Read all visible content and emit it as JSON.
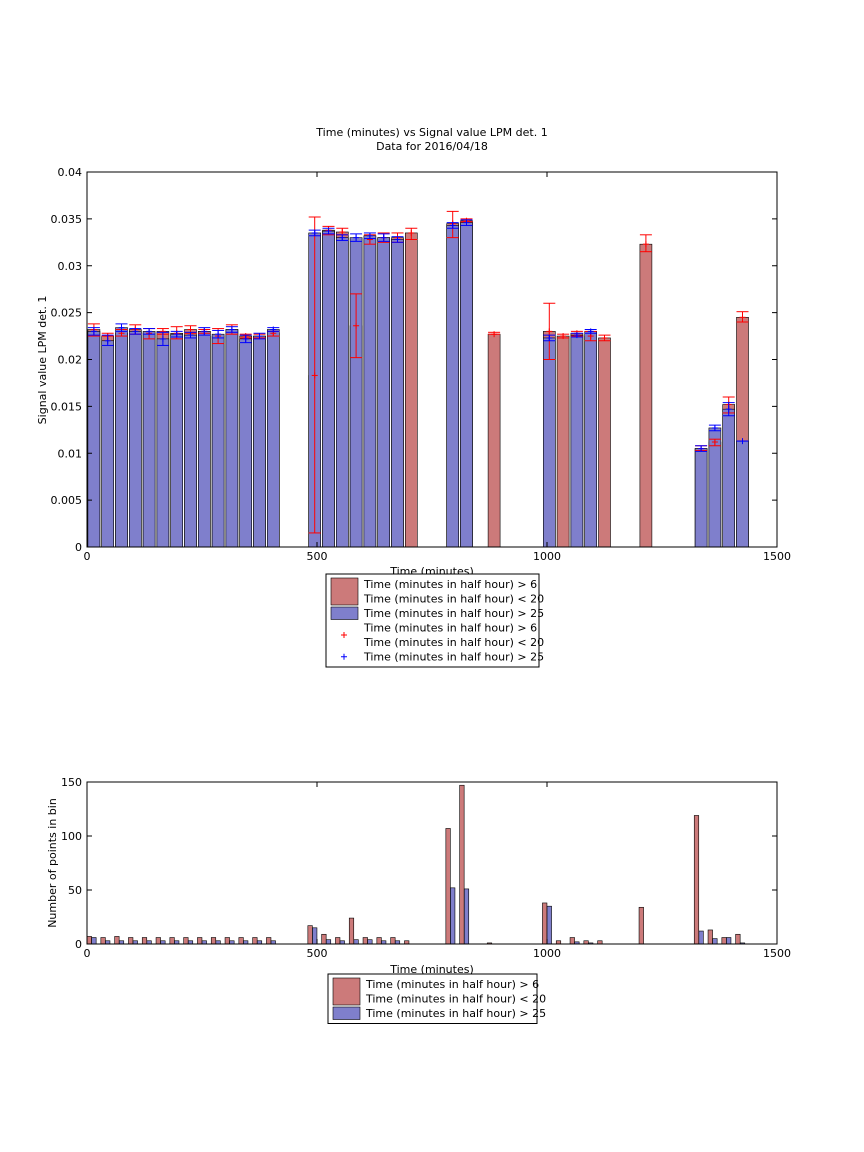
{
  "colors": {
    "red_fill": "#cc7a7a",
    "blue_fill": "#7f7fcc",
    "red_err": "#ff0000",
    "blue_err": "#0000ff",
    "axis": "#000000"
  },
  "chart_data": [
    {
      "type": "bar",
      "title": "Time (minutes) vs Signal value LPM det. 1",
      "subtitle": "Data for 2016/04/18",
      "xlabel": "Time (minutes)",
      "ylabel": "Signal value LPM det. 1",
      "xlim": [
        0,
        1500
      ],
      "ylim": [
        0,
        0.04
      ],
      "xticks": [
        0,
        500,
        1000,
        1500
      ],
      "yticks": [
        0,
        0.005,
        0.01,
        0.015,
        0.02,
        0.025,
        0.03,
        0.035,
        0.04
      ],
      "ytick_labels": [
        "0",
        "0.005",
        "0.01",
        "0.015",
        "0.02",
        "0.025",
        "0.03",
        "0.035",
        "0.04"
      ],
      "legend_position": "below",
      "legend": [
        {
          "kind": "bar",
          "color": "red",
          "lines": [
            "Time (minutes in half hour) > 6",
            "Time (minutes in half hour) < 20"
          ]
        },
        {
          "kind": "bar",
          "color": "blue",
          "lines": [
            "Time (minutes in half hour) > 25"
          ]
        },
        {
          "kind": "marker",
          "color": "red",
          "lines": [
            "Time (minutes in half hour) > 6",
            "Time (minutes in half hour) < 20"
          ]
        },
        {
          "kind": "marker",
          "color": "blue",
          "lines": [
            "Time (minutes in half hour) > 25"
          ]
        }
      ],
      "series": [
        {
          "color": "red",
          "x": [
            15,
            45,
            75,
            105,
            135,
            165,
            195,
            225,
            255,
            285,
            315,
            345,
            375,
            405,
            495,
            525,
            555,
            585,
            615,
            645,
            675,
            705,
            795,
            825,
            885,
            1005,
            1035,
            1065,
            1095,
            1125,
            1215,
            1335,
            1365,
            1395,
            1425
          ],
          "values": [
            0.0232,
            0.0225,
            0.0228,
            0.0232,
            0.0228,
            0.023,
            0.0228,
            0.0232,
            0.023,
            0.0225,
            0.0232,
            0.0225,
            0.0225,
            0.0228,
            0.0183,
            0.0338,
            0.0336,
            0.0236,
            0.0328,
            0.033,
            0.033,
            0.0335,
            0.0345,
            0.0348,
            0.0227,
            0.023,
            0.0225,
            0.0228,
            0.0225,
            0.0223,
            0.0323,
            0.0105,
            0.0112,
            0.0152,
            0.0245
          ],
          "err_low": [
            0.0225,
            0.0225,
            0.0225,
            0.0227,
            0.0222,
            0.0227,
            0.0222,
            0.0228,
            0.0228,
            0.0217,
            0.0227,
            0.0223,
            0.0223,
            0.0225,
            0.0015,
            0.0333,
            0.0333,
            0.0202,
            0.0323,
            0.0325,
            0.0325,
            0.0328,
            0.033,
            0.0347,
            0.0227,
            0.02,
            0.0223,
            0.0225,
            0.022,
            0.022,
            0.0315,
            0.0103,
            0.0108,
            0.0143,
            0.024
          ],
          "err_high": [
            0.0238,
            0.0228,
            0.0232,
            0.0237,
            0.0233,
            0.0233,
            0.0235,
            0.0236,
            0.0232,
            0.0233,
            0.0237,
            0.0227,
            0.0227,
            0.023,
            0.0352,
            0.0342,
            0.034,
            0.027,
            0.0333,
            0.0335,
            0.0335,
            0.034,
            0.0358,
            0.035,
            0.0229,
            0.026,
            0.0227,
            0.023,
            0.023,
            0.0226,
            0.0333,
            0.0108,
            0.0115,
            0.016,
            0.0251
          ]
        },
        {
          "color": "blue",
          "x": [
            15,
            45,
            75,
            105,
            135,
            165,
            195,
            225,
            255,
            285,
            315,
            345,
            375,
            405,
            495,
            525,
            555,
            585,
            615,
            645,
            675,
            795,
            825,
            1005,
            1065,
            1095,
            1335,
            1365,
            1395,
            1425
          ],
          "values": [
            0.023,
            0.022,
            0.0234,
            0.023,
            0.023,
            0.0222,
            0.0227,
            0.0226,
            0.023,
            0.0227,
            0.0232,
            0.0222,
            0.0225,
            0.0232,
            0.0335,
            0.0337,
            0.033,
            0.033,
            0.0332,
            0.033,
            0.0328,
            0.0343,
            0.0346,
            0.0223,
            0.0226,
            0.023,
            0.0105,
            0.0127,
            0.0147,
            0.0113
          ],
          "err_low": [
            0.0226,
            0.0215,
            0.023,
            0.0227,
            0.0227,
            0.0215,
            0.0224,
            0.0223,
            0.0226,
            0.0223,
            0.0229,
            0.0218,
            0.0222,
            0.023,
            0.0332,
            0.0334,
            0.0327,
            0.0326,
            0.0329,
            0.0326,
            0.0325,
            0.034,
            0.0343,
            0.022,
            0.0224,
            0.0228,
            0.0102,
            0.0124,
            0.014,
            0.0113
          ],
          "err_high": [
            0.0234,
            0.0226,
            0.0238,
            0.0233,
            0.0233,
            0.0229,
            0.023,
            0.0229,
            0.0234,
            0.0231,
            0.0235,
            0.0226,
            0.0228,
            0.0234,
            0.0338,
            0.034,
            0.0333,
            0.0334,
            0.0335,
            0.0334,
            0.0331,
            0.0346,
            0.0349,
            0.0226,
            0.0228,
            0.0232,
            0.0108,
            0.013,
            0.0154,
            0.0113
          ]
        }
      ]
    },
    {
      "type": "bar",
      "xlabel": "Time (minutes)",
      "ylabel": "Number of points in bin",
      "xlim": [
        0,
        1500
      ],
      "ylim": [
        0,
        150
      ],
      "xticks": [
        0,
        500,
        1000,
        1500
      ],
      "yticks": [
        0,
        50,
        100,
        150
      ],
      "ytick_labels": [
        "0",
        "50",
        "100",
        "150"
      ],
      "legend_position": "below",
      "legend": [
        {
          "kind": "bar",
          "color": "red",
          "lines": [
            "Time (minutes in half hour) > 6",
            "Time (minutes in half hour) < 20"
          ]
        },
        {
          "kind": "bar",
          "color": "blue",
          "lines": [
            "Time (minutes in half hour) > 25"
          ]
        }
      ],
      "series": [
        {
          "color": "red",
          "x": [
            5,
            35,
            65,
            95,
            125,
            155,
            185,
            215,
            245,
            275,
            305,
            335,
            365,
            395,
            485,
            515,
            545,
            575,
            605,
            635,
            665,
            695,
            785,
            815,
            875,
            995,
            1025,
            1055,
            1085,
            1115,
            1205,
            1325,
            1355,
            1385,
            1415
          ],
          "values": [
            7,
            6,
            7,
            6,
            6,
            6,
            6,
            6,
            6,
            6,
            6,
            6,
            6,
            6,
            17,
            9,
            6,
            24,
            6,
            6,
            6,
            3,
            107,
            147,
            1,
            38,
            3,
            6,
            3,
            3,
            34,
            119,
            13,
            6,
            9
          ]
        },
        {
          "color": "blue",
          "x": [
            15,
            45,
            75,
            105,
            135,
            165,
            195,
            225,
            255,
            285,
            315,
            345,
            375,
            405,
            495,
            525,
            555,
            585,
            615,
            645,
            675,
            795,
            825,
            1005,
            1065,
            1095,
            1335,
            1365,
            1395,
            1425
          ],
          "values": [
            6,
            3,
            3,
            3,
            3,
            3,
            3,
            3,
            3,
            3,
            3,
            3,
            3,
            3,
            15,
            4,
            3,
            4,
            4,
            3,
            3,
            52,
            51,
            35,
            2,
            1,
            12,
            5,
            6,
            1
          ]
        }
      ]
    }
  ]
}
